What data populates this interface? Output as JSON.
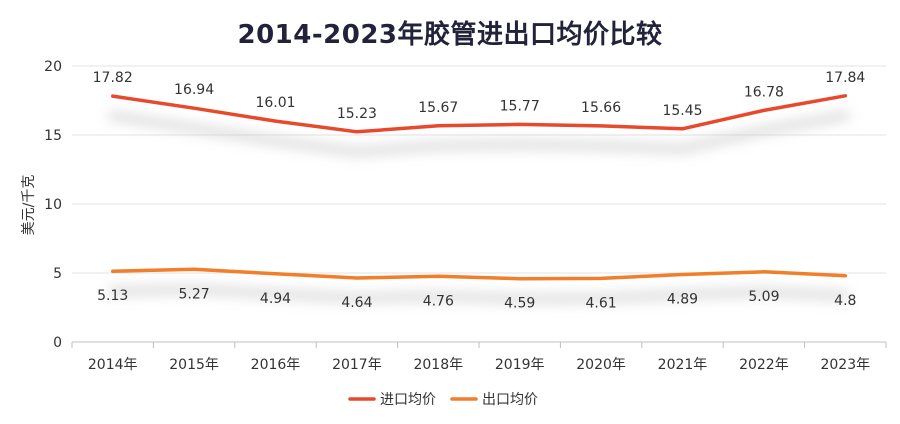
{
  "chart_data": {
    "type": "line",
    "title": "2014-2023年胶管进出口均价比较",
    "ylabel": "美元/千克",
    "xlabel": "",
    "ylim": [
      0,
      20
    ],
    "yticks": [
      0,
      5,
      10,
      15,
      20
    ],
    "categories": [
      "2014年",
      "2015年",
      "2016年",
      "2017年",
      "2018年",
      "2019年",
      "2020年",
      "2021年",
      "2022年",
      "2023年"
    ],
    "series": [
      {
        "name": "进口均价",
        "color": "#e8492c",
        "values": [
          17.82,
          16.94,
          16.01,
          15.23,
          15.67,
          15.77,
          15.66,
          15.45,
          16.78,
          17.84
        ],
        "label_pos": "above"
      },
      {
        "name": "出口均价",
        "color": "#f07e2a",
        "values": [
          5.13,
          5.27,
          4.94,
          4.64,
          4.76,
          4.59,
          4.61,
          4.89,
          5.09,
          4.8
        ],
        "label_pos": "below"
      }
    ],
    "grid": true,
    "legend": "bottom"
  }
}
